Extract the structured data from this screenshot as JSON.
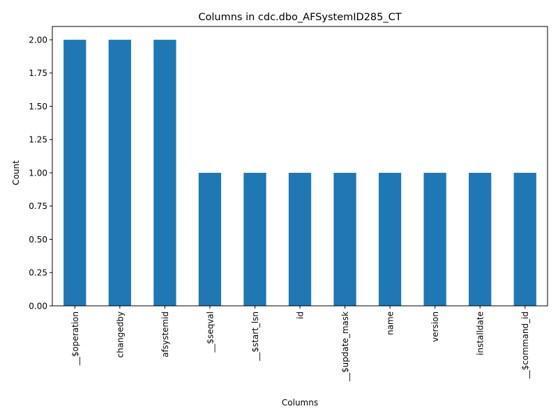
{
  "chart_data": {
    "type": "bar",
    "title": "Columns in cdc.dbo_AFSystemID285_CT",
    "xlabel": "Columns",
    "ylabel": "Count",
    "categories": [
      "__$operation",
      "changedby",
      "afsystemid",
      "__$seqval",
      "__$start_lsn",
      "id",
      "__$update_mask",
      "name",
      "version",
      "installdate",
      "__$command_id"
    ],
    "values": [
      2,
      2,
      2,
      1,
      1,
      1,
      1,
      1,
      1,
      1,
      1
    ],
    "ylim": [
      0,
      2.1
    ],
    "yticks": [
      "0.00",
      "0.25",
      "0.50",
      "0.75",
      "1.00",
      "1.25",
      "1.50",
      "1.75",
      "2.00"
    ],
    "ytick_values": [
      0,
      0.25,
      0.5,
      0.75,
      1.0,
      1.25,
      1.5,
      1.75,
      2.0
    ],
    "bar_color": "#1f77b4",
    "grid": false,
    "legend": "none"
  }
}
